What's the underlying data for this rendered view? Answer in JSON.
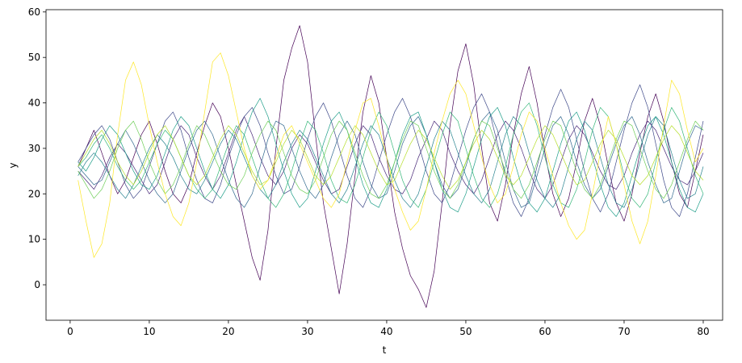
{
  "chart_data": {
    "type": "line",
    "xlabel": "t",
    "ylabel": "y",
    "x": [
      1,
      2,
      3,
      4,
      5,
      6,
      7,
      8,
      9,
      10,
      11,
      12,
      13,
      14,
      15,
      16,
      17,
      18,
      19,
      20,
      21,
      22,
      23,
      24,
      25,
      26,
      27,
      28,
      29,
      30,
      31,
      32,
      33,
      34,
      35,
      36,
      37,
      38,
      39,
      40,
      41,
      42,
      43,
      44,
      45,
      46,
      47,
      48,
      49,
      50,
      51,
      52,
      53,
      54,
      55,
      56,
      57,
      58,
      59,
      60,
      61,
      62,
      63,
      64,
      65,
      66,
      67,
      68,
      69,
      70,
      71,
      72,
      73,
      74,
      75,
      76,
      77,
      78,
      79,
      80
    ],
    "xlim": [
      -3.05,
      82.45
    ],
    "xticks": [
      0,
      10,
      20,
      30,
      40,
      50,
      60,
      70,
      80
    ],
    "ylim": [
      -7.8,
      60.5
    ],
    "yticks": [
      0,
      10,
      20,
      30,
      40,
      50,
      60
    ],
    "series": [
      {
        "color": "#440154",
        "values": [
          26,
          30,
          34,
          29,
          24,
          20,
          23,
          28,
          33,
          36,
          31,
          25,
          20,
          18,
          22,
          29,
          35,
          40,
          37,
          30,
          22,
          14,
          6,
          1,
          12,
          30,
          45,
          52,
          57,
          49,
          33,
          18,
          8,
          -2,
          9,
          24,
          38,
          46,
          40,
          28,
          16,
          8,
          2,
          -1,
          -5,
          3,
          18,
          35,
          47,
          53,
          44,
          30,
          18,
          14,
          22,
          33,
          42,
          48,
          40,
          29,
          20,
          15,
          19,
          27,
          36,
          41,
          35,
          26,
          18,
          14,
          20,
          29,
          37,
          42,
          36,
          27,
          20,
          17,
          25,
          33
        ]
      },
      {
        "color": "#482878",
        "values": [
          25,
          23,
          21,
          24,
          28,
          31,
          29,
          26,
          23,
          20,
          22,
          27,
          32,
          35,
          33,
          28,
          24,
          21,
          24,
          29,
          34,
          37,
          33,
          28,
          24,
          22,
          25,
          30,
          33,
          31,
          27,
          23,
          20,
          21,
          26,
          31,
          35,
          33,
          28,
          24,
          21,
          20,
          23,
          28,
          32,
          36,
          34,
          29,
          25,
          22,
          20,
          23,
          28,
          33,
          36,
          34,
          30,
          25,
          21,
          19,
          22,
          27,
          32,
          35,
          33,
          29,
          25,
          22,
          21,
          24,
          29,
          33,
          36,
          34,
          30,
          26,
          23,
          22,
          25,
          29
        ]
      },
      {
        "color": "#3e4989",
        "values": [
          27,
          30,
          33,
          35,
          32,
          27,
          22,
          19,
          21,
          26,
          31,
          36,
          38,
          34,
          28,
          23,
          19,
          18,
          22,
          28,
          33,
          37,
          39,
          35,
          29,
          24,
          20,
          21,
          26,
          32,
          37,
          40,
          36,
          30,
          24,
          19,
          17,
          21,
          27,
          33,
          38,
          41,
          37,
          31,
          25,
          20,
          18,
          22,
          28,
          34,
          39,
          42,
          38,
          31,
          24,
          18,
          15,
          19,
          26,
          33,
          39,
          43,
          39,
          32,
          25,
          19,
          16,
          20,
          27,
          34,
          40,
          44,
          39,
          31,
          23,
          17,
          15,
          20,
          28,
          36
        ]
      },
      {
        "color": "#31688e",
        "values": [
          26,
          24,
          22,
          23,
          27,
          31,
          34,
          31,
          27,
          23,
          20,
          18,
          20,
          25,
          30,
          34,
          36,
          33,
          28,
          23,
          19,
          17,
          20,
          26,
          32,
          36,
          35,
          30,
          25,
          21,
          19,
          22,
          28,
          33,
          36,
          33,
          27,
          22,
          19,
          20,
          25,
          31,
          35,
          37,
          33,
          27,
          22,
          19,
          21,
          26,
          32,
          36,
          38,
          34,
          27,
          21,
          17,
          18,
          24,
          30,
          35,
          37,
          33,
          27,
          22,
          19,
          21,
          26,
          31,
          35,
          37,
          33,
          27,
          22,
          18,
          19,
          25,
          31,
          35,
          34
        ]
      },
      {
        "color": "#26828e",
        "values": [
          24,
          27,
          29,
          27,
          24,
          21,
          19,
          22,
          26,
          30,
          33,
          31,
          28,
          24,
          21,
          20,
          23,
          27,
          31,
          34,
          32,
          28,
          24,
          21,
          19,
          22,
          27,
          31,
          34,
          32,
          28,
          24,
          20,
          18,
          21,
          26,
          31,
          35,
          33,
          28,
          23,
          19,
          17,
          20,
          26,
          32,
          36,
          34,
          29,
          24,
          20,
          18,
          21,
          27,
          33,
          37,
          35,
          29,
          23,
          19,
          17,
          20,
          26,
          32,
          36,
          34,
          28,
          22,
          18,
          17,
          21,
          27,
          33,
          37,
          35,
          29,
          23,
          19,
          20,
          26
        ]
      },
      {
        "color": "#1f9e89",
        "values": [
          27,
          25,
          28,
          32,
          35,
          33,
          29,
          25,
          22,
          21,
          24,
          29,
          34,
          37,
          35,
          30,
          25,
          21,
          19,
          22,
          27,
          33,
          38,
          41,
          37,
          31,
          25,
          20,
          17,
          19,
          25,
          31,
          36,
          38,
          34,
          28,
          22,
          18,
          17,
          21,
          27,
          33,
          37,
          38,
          33,
          27,
          21,
          17,
          16,
          20,
          26,
          32,
          37,
          39,
          35,
          28,
          22,
          18,
          16,
          19,
          25,
          31,
          36,
          38,
          34,
          28,
          22,
          17,
          15,
          18,
          24,
          30,
          35,
          37,
          33,
          27,
          21,
          17,
          16,
          20
        ]
      },
      {
        "color": "#35b779",
        "values": [
          26,
          28,
          31,
          33,
          30,
          26,
          23,
          21,
          23,
          27,
          31,
          34,
          32,
          28,
          24,
          21,
          19,
          21,
          26,
          31,
          35,
          33,
          28,
          23,
          19,
          17,
          20,
          25,
          31,
          36,
          34,
          29,
          23,
          19,
          18,
          22,
          28,
          34,
          38,
          35,
          29,
          23,
          19,
          17,
          21,
          27,
          33,
          38,
          36,
          30,
          24,
          19,
          17,
          20,
          26,
          33,
          38,
          40,
          35,
          28,
          22,
          18,
          17,
          21,
          27,
          34,
          39,
          37,
          31,
          24,
          19,
          17,
          20,
          27,
          34,
          39,
          36,
          30,
          24,
          20
        ]
      },
      {
        "color": "#6ece58",
        "values": [
          25,
          22,
          19,
          21,
          25,
          30,
          34,
          36,
          32,
          27,
          23,
          20,
          22,
          26,
          31,
          35,
          33,
          29,
          25,
          22,
          21,
          24,
          29,
          33,
          36,
          34,
          29,
          24,
          21,
          20,
          23,
          28,
          33,
          36,
          34,
          29,
          24,
          20,
          19,
          22,
          27,
          32,
          36,
          35,
          30,
          25,
          21,
          19,
          22,
          27,
          32,
          36,
          35,
          30,
          25,
          21,
          19,
          22,
          27,
          32,
          36,
          35,
          30,
          25,
          21,
          19,
          22,
          27,
          32,
          36,
          35,
          30,
          25,
          21,
          19,
          22,
          27,
          32,
          36,
          34
        ]
      },
      {
        "color": "#b5de2b",
        "values": [
          26,
          29,
          32,
          34,
          31,
          27,
          24,
          22,
          25,
          29,
          33,
          35,
          32,
          28,
          24,
          22,
          24,
          28,
          32,
          35,
          33,
          29,
          25,
          22,
          23,
          27,
          31,
          34,
          32,
          28,
          24,
          22,
          24,
          28,
          32,
          35,
          33,
          29,
          25,
          22,
          23,
          27,
          31,
          34,
          32,
          28,
          24,
          21,
          23,
          27,
          31,
          34,
          32,
          28,
          24,
          22,
          24,
          28,
          32,
          35,
          33,
          29,
          25,
          22,
          23,
          27,
          31,
          34,
          32,
          28,
          24,
          22,
          24,
          28,
          32,
          35,
          33,
          29,
          25,
          23
        ]
      },
      {
        "color": "#fde725",
        "values": [
          23,
          14,
          6,
          9,
          18,
          33,
          45,
          49,
          44,
          35,
          27,
          20,
          15,
          13,
          18,
          27,
          38,
          49,
          51,
          46,
          38,
          30,
          24,
          21,
          23,
          28,
          33,
          35,
          31,
          27,
          23,
          19,
          17,
          20,
          27,
          34,
          40,
          41,
          35,
          28,
          21,
          16,
          12,
          14,
          21,
          29,
          36,
          42,
          45,
          42,
          35,
          28,
          22,
          18,
          20,
          26,
          33,
          38,
          36,
          30,
          24,
          18,
          13,
          10,
          12,
          20,
          29,
          37,
          31,
          22,
          14,
          9,
          14,
          24,
          35,
          45,
          42,
          34,
          27,
          30
        ]
      }
    ]
  }
}
